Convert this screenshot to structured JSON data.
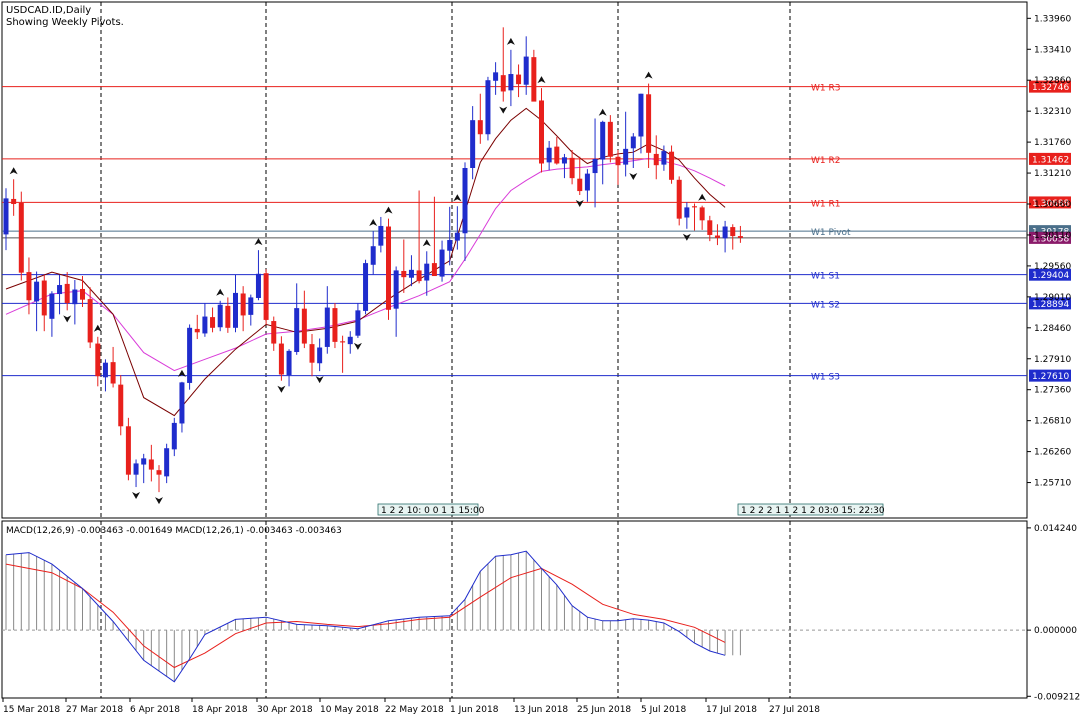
{
  "header": {
    "symbol_line": "USDCAD.ID,Daily",
    "pivot_note": "Showing Weekly Pivots."
  },
  "macd_header": "MACD(12,26,9) -0.003463 -0.001649 MACD(12,26,1) -0.003463 -0.003463",
  "colors": {
    "bull": "#1f2ccc",
    "bear": "#e8201c",
    "ma_fast": "#7a0000",
    "ma_slow": "#d93cd9",
    "resistance": "#e8201c",
    "support": "#1f2ccc",
    "pivot": "#4a6f8a",
    "macd_line": "#1f2ccc",
    "signal_line": "#e8201c"
  },
  "chart_data": [
    {
      "type": "candlestick",
      "title": "USDCAD.ID,Daily",
      "subtitle": "Showing Weekly Pivots.",
      "ylim": [
        1.2508,
        1.3425
      ],
      "y_ticks": [
        "1.33960",
        "1.33410",
        "1.32860",
        "1.32310",
        "1.31760",
        "1.31210",
        "1.30660",
        "1.30110",
        "1.29560",
        "1.29010",
        "1.28460",
        "1.27910",
        "1.27360",
        "1.26810",
        "1.26260",
        "1.25710"
      ],
      "x_ticks": [
        "15 Mar 2018",
        "27 Mar 2018",
        "6 Apr 2018",
        "18 Apr 2018",
        "30 Apr 2018",
        "10 May 2018",
        "22 May 2018",
        "1 Jun 2018",
        "13 Jun 2018",
        "25 Jun 2018",
        "5 Jul 2018",
        "17 Jul 2018",
        "27 Jul 2018"
      ],
      "pivot_levels": [
        {
          "name": "W1 R3",
          "value": 1.32746,
          "label": "1.32746",
          "kind": "resistance"
        },
        {
          "name": "W1 R2",
          "value": 1.31462,
          "label": "1.31462",
          "kind": "resistance"
        },
        {
          "name": "W1 R1",
          "value": 1.30688,
          "label": "1.30688",
          "kind": "resistance"
        },
        {
          "name": "W1 Pivot",
          "value": 1.30178,
          "label": "1.30178",
          "kind": "pivot"
        },
        {
          "name": "W1 S1",
          "value": 1.29404,
          "label": "1.29404",
          "kind": "support"
        },
        {
          "name": "W1 S2",
          "value": 1.28894,
          "label": "1.28894",
          "kind": "support"
        },
        {
          "name": "W1 S3",
          "value": 1.2761,
          "label": "1.27610",
          "kind": "support"
        }
      ],
      "current_price": {
        "value": 1.30058,
        "label": "1.30058"
      },
      "time_labels": [
        {
          "text": "1 2 2 10: 0 0 1 1 15:00"
        },
        {
          "text": "1 2 2 2 1 1 2 1 2 03:0 15: 22:30"
        }
      ],
      "candles": [
        [
          1.3012,
          1.3094,
          1.2984,
          1.3076
        ],
        [
          1.3075,
          1.311,
          1.3045,
          1.3066
        ],
        [
          1.3068,
          1.3088,
          1.293,
          1.2944
        ],
        [
          1.2945,
          1.2971,
          1.287,
          1.2895
        ],
        [
          1.2893,
          1.2946,
          1.284,
          1.2928
        ],
        [
          1.293,
          1.294,
          1.284,
          1.2868
        ],
        [
          1.2862,
          1.2911,
          1.283,
          1.2907
        ],
        [
          1.2906,
          1.294,
          1.287,
          1.2922
        ],
        [
          1.2924,
          1.2945,
          1.2877,
          1.289
        ],
        [
          1.2888,
          1.2931,
          1.2852,
          1.2914
        ],
        [
          1.2915,
          1.2938,
          1.2883,
          1.2896
        ],
        [
          1.2897,
          1.2918,
          1.281,
          1.282
        ],
        [
          1.2818,
          1.283,
          1.2742,
          1.276
        ],
        [
          1.2758,
          1.279,
          1.2733,
          1.2784
        ],
        [
          1.2785,
          1.2812,
          1.274,
          1.2747
        ],
        [
          1.2745,
          1.2762,
          1.2655,
          1.2671
        ],
        [
          1.2671,
          1.2686,
          1.2575,
          1.2585
        ],
        [
          1.2585,
          1.2612,
          1.2563,
          1.2605
        ],
        [
          1.2603,
          1.2622,
          1.257,
          1.2614
        ],
        [
          1.2612,
          1.2638,
          1.2573,
          1.2594
        ],
        [
          1.2593,
          1.2602,
          1.2554,
          1.2585
        ],
        [
          1.2582,
          1.264,
          1.257,
          1.2632
        ],
        [
          1.263,
          1.2686,
          1.2618,
          1.2677
        ],
        [
          1.2676,
          1.275,
          1.266,
          1.2749
        ],
        [
          1.2748,
          1.2852,
          1.2736,
          1.2846
        ],
        [
          1.2844,
          1.2869,
          1.2826,
          1.2838
        ],
        [
          1.2836,
          1.289,
          1.283,
          1.2866
        ],
        [
          1.2865,
          1.2882,
          1.2838,
          1.2846
        ],
        [
          1.2847,
          1.2894,
          1.284,
          1.2887
        ],
        [
          1.2885,
          1.29,
          1.2837,
          1.2846
        ],
        [
          1.2846,
          1.294,
          1.2838,
          1.2908
        ],
        [
          1.2907,
          1.292,
          1.284,
          1.2868
        ],
        [
          1.2869,
          1.2905,
          1.285,
          1.29
        ],
        [
          1.2899,
          1.2984,
          1.2895,
          1.2942
        ],
        [
          1.2943,
          1.295,
          1.2852,
          1.286
        ],
        [
          1.2858,
          1.2866,
          1.2805,
          1.2818
        ],
        [
          1.2818,
          1.2831,
          1.2752,
          1.2763
        ],
        [
          1.2762,
          1.2808,
          1.2742,
          1.2805
        ],
        [
          1.2803,
          1.2925,
          1.2798,
          1.2881
        ],
        [
          1.288,
          1.2912,
          1.281,
          1.2818
        ],
        [
          1.2817,
          1.2835,
          1.276,
          1.2784
        ],
        [
          1.2783,
          1.2827,
          1.2769,
          1.2811
        ],
        [
          1.2812,
          1.292,
          1.28,
          1.2882
        ],
        [
          1.2881,
          1.289,
          1.281,
          1.2821
        ],
        [
          1.2822,
          1.2832,
          1.2766,
          1.282
        ],
        [
          1.2817,
          1.284,
          1.28,
          1.283
        ],
        [
          1.2832,
          1.289,
          1.2828,
          1.2877
        ],
        [
          1.2876,
          1.2967,
          1.287,
          1.2961
        ],
        [
          1.2958,
          1.3018,
          1.2941,
          1.2991
        ],
        [
          1.2992,
          1.3043,
          1.298,
          1.3027
        ],
        [
          1.3026,
          1.304,
          1.286,
          1.2878
        ],
        [
          1.288,
          1.2955,
          1.283,
          1.2948
        ],
        [
          1.2947,
          1.3003,
          1.2908,
          1.2936
        ],
        [
          1.2935,
          1.2975,
          1.292,
          1.2949
        ],
        [
          1.2948,
          1.309,
          1.2925,
          1.2929
        ],
        [
          1.293,
          1.2982,
          1.2903,
          1.296
        ],
        [
          1.2961,
          1.3079,
          1.294,
          1.2938
        ],
        [
          1.2937,
          1.3001,
          1.2928,
          1.2985
        ],
        [
          1.2983,
          1.3061,
          1.2957,
          1.3002
        ],
        [
          1.3001,
          1.3062,
          1.2985,
          1.3015
        ],
        [
          1.3014,
          1.314,
          1.2965,
          1.313
        ],
        [
          1.313,
          1.324,
          1.311,
          1.3215
        ],
        [
          1.3215,
          1.3262,
          1.3173,
          1.319
        ],
        [
          1.319,
          1.3292,
          1.3179,
          1.3286
        ],
        [
          1.3285,
          1.3318,
          1.326,
          1.33
        ],
        [
          1.3295,
          1.338,
          1.3248,
          1.3266
        ],
        [
          1.3268,
          1.334,
          1.324,
          1.3297
        ],
        [
          1.3296,
          1.3314,
          1.3256,
          1.3279
        ],
        [
          1.3278,
          1.3364,
          1.326,
          1.3328
        ],
        [
          1.3327,
          1.334,
          1.3253,
          1.3248
        ],
        [
          1.325,
          1.3272,
          1.3122,
          1.3138
        ],
        [
          1.314,
          1.3178,
          1.3126,
          1.3166
        ],
        [
          1.3168,
          1.3185,
          1.3136,
          1.3138
        ],
        [
          1.3138,
          1.3155,
          1.3112,
          1.3149
        ],
        [
          1.3148,
          1.3162,
          1.3101,
          1.3112
        ],
        [
          1.3111,
          1.315,
          1.3082,
          1.3089
        ],
        [
          1.309,
          1.3128,
          1.307,
          1.312
        ],
        [
          1.3121,
          1.3218,
          1.306,
          1.3146
        ],
        [
          1.3145,
          1.3214,
          1.3101,
          1.3212
        ],
        [
          1.3212,
          1.3224,
          1.314,
          1.315
        ],
        [
          1.315,
          1.3162,
          1.31,
          1.3135
        ],
        [
          1.3136,
          1.323,
          1.3115,
          1.3164
        ],
        [
          1.3165,
          1.3192,
          1.313,
          1.3186
        ],
        [
          1.3186,
          1.3262,
          1.3156,
          1.3262
        ],
        [
          1.3261,
          1.328,
          1.313,
          1.3157
        ],
        [
          1.3155,
          1.3188,
          1.311,
          1.3135
        ],
        [
          1.3136,
          1.317,
          1.3125,
          1.316
        ],
        [
          1.3159,
          1.317,
          1.3102,
          1.3109
        ],
        [
          1.3109,
          1.3115,
          1.3028,
          1.304
        ],
        [
          1.3042,
          1.3069,
          1.3022,
          1.306
        ],
        [
          1.3062,
          1.3067,
          1.3019,
          1.306
        ],
        [
          1.306,
          1.3063,
          1.302,
          1.3037
        ],
        [
          1.3037,
          1.3045,
          1.3,
          1.3011
        ],
        [
          1.301,
          1.303,
          1.2993,
          1.3006
        ],
        [
          1.3005,
          1.3036,
          1.298,
          1.3026
        ],
        [
          1.3025,
          1.303,
          1.2985,
          1.3009
        ],
        [
          1.3009,
          1.3027,
          1.2997,
          1.3006
        ]
      ],
      "ma_fast": [
        [
          0,
          1.2915
        ],
        [
          6,
          1.2945
        ],
        [
          10,
          1.293
        ],
        [
          14,
          1.287
        ],
        [
          18,
          1.2722
        ],
        [
          22,
          1.269
        ],
        [
          26,
          1.2755
        ],
        [
          30,
          1.2808
        ],
        [
          34,
          1.2852
        ],
        [
          38,
          1.2838
        ],
        [
          42,
          1.2845
        ],
        [
          46,
          1.2858
        ],
        [
          50,
          1.2897
        ],
        [
          54,
          1.2932
        ],
        [
          58,
          1.2965
        ],
        [
          60,
          1.3052
        ],
        [
          62,
          1.314
        ],
        [
          64,
          1.3182
        ],
        [
          66,
          1.3215
        ],
        [
          68,
          1.3236
        ],
        [
          70,
          1.3215
        ],
        [
          72,
          1.3187
        ],
        [
          74,
          1.3158
        ],
        [
          76,
          1.3138
        ],
        [
          78,
          1.3149
        ],
        [
          80,
          1.3155
        ],
        [
          82,
          1.3158
        ],
        [
          84,
          1.3173
        ],
        [
          86,
          1.3161
        ],
        [
          88,
          1.3144
        ],
        [
          90,
          1.3112
        ],
        [
          92,
          1.3083
        ],
        [
          94,
          1.306
        ]
      ],
      "ma_slow": [
        [
          0,
          1.287
        ],
        [
          6,
          1.2906
        ],
        [
          10,
          1.2912
        ],
        [
          14,
          1.287
        ],
        [
          18,
          1.2802
        ],
        [
          22,
          1.277
        ],
        [
          26,
          1.279
        ],
        [
          30,
          1.281
        ],
        [
          34,
          1.2835
        ],
        [
          38,
          1.284
        ],
        [
          42,
          1.2848
        ],
        [
          46,
          1.286
        ],
        [
          50,
          1.2882
        ],
        [
          54,
          1.2903
        ],
        [
          58,
          1.2928
        ],
        [
          60,
          1.2968
        ],
        [
          62,
          1.3012
        ],
        [
          64,
          1.3058
        ],
        [
          66,
          1.309
        ],
        [
          68,
          1.3108
        ],
        [
          70,
          1.3124
        ],
        [
          72,
          1.3128
        ],
        [
          74,
          1.313
        ],
        [
          76,
          1.3132
        ],
        [
          78,
          1.3136
        ],
        [
          80,
          1.3139
        ],
        [
          82,
          1.3143
        ],
        [
          84,
          1.3147
        ],
        [
          86,
          1.3142
        ],
        [
          88,
          1.3135
        ],
        [
          90,
          1.3125
        ],
        [
          92,
          1.3112
        ],
        [
          94,
          1.3098
        ]
      ],
      "fractals": [
        {
          "i": 1,
          "dir": "up"
        },
        {
          "i": 8,
          "dir": "down"
        },
        {
          "i": 12,
          "dir": "up"
        },
        {
          "i": 17,
          "dir": "down"
        },
        {
          "i": 20,
          "dir": "down"
        },
        {
          "i": 23,
          "dir": "up"
        },
        {
          "i": 28,
          "dir": "up"
        },
        {
          "i": 33,
          "dir": "up"
        },
        {
          "i": 36,
          "dir": "down"
        },
        {
          "i": 41,
          "dir": "down"
        },
        {
          "i": 46,
          "dir": "down"
        },
        {
          "i": 48,
          "dir": "up"
        },
        {
          "i": 50,
          "dir": "up"
        },
        {
          "i": 55,
          "dir": "up"
        },
        {
          "i": 59,
          "dir": "up"
        },
        {
          "i": 65,
          "dir": "down"
        },
        {
          "i": 66,
          "dir": "up"
        },
        {
          "i": 70,
          "dir": "up"
        },
        {
          "i": 75,
          "dir": "down"
        },
        {
          "i": 78,
          "dir": "up"
        },
        {
          "i": 82,
          "dir": "down"
        },
        {
          "i": 84,
          "dir": "up"
        },
        {
          "i": 89,
          "dir": "down"
        },
        {
          "i": 91,
          "dir": "up"
        }
      ]
    },
    {
      "type": "macd",
      "title": "MACD(12,26,9) -0.003463 -0.001649 MACD(12,26,1) -0.003463 -0.003463",
      "ylim": [
        -0.00945,
        0.0152
      ],
      "y_ticks": [
        "0.014240",
        "0.000000",
        "-0.009212"
      ],
      "histogram": [
        [
          0,
          0.0105
        ],
        [
          3,
          0.0108
        ],
        [
          6,
          0.0092
        ],
        [
          10,
          0.0058
        ],
        [
          14,
          0.0012
        ],
        [
          18,
          -0.0042
        ],
        [
          22,
          -0.0072
        ],
        [
          24,
          -0.004
        ],
        [
          26,
          -0.0006
        ],
        [
          30,
          0.0015
        ],
        [
          34,
          0.0018
        ],
        [
          38,
          0.0008
        ],
        [
          42,
          0.0006
        ],
        [
          46,
          0.0002
        ],
        [
          50,
          0.0013
        ],
        [
          54,
          0.0018
        ],
        [
          58,
          0.002
        ],
        [
          60,
          0.0043
        ],
        [
          62,
          0.0082
        ],
        [
          64,
          0.0103
        ],
        [
          66,
          0.0105
        ],
        [
          68,
          0.011
        ],
        [
          70,
          0.0086
        ],
        [
          72,
          0.0063
        ],
        [
          74,
          0.0034
        ],
        [
          76,
          0.0018
        ],
        [
          78,
          0.0013
        ],
        [
          80,
          0.0013
        ],
        [
          82,
          0.0016
        ],
        [
          84,
          0.0014
        ],
        [
          86,
          0.001
        ],
        [
          88,
          -0.0002
        ],
        [
          90,
          -0.0018
        ],
        [
          92,
          -0.0029
        ],
        [
          94,
          -0.0035
        ]
      ],
      "signal": [
        [
          0,
          0.0092
        ],
        [
          6,
          0.008
        ],
        [
          10,
          0.0058
        ],
        [
          14,
          0.0025
        ],
        [
          18,
          -0.0022
        ],
        [
          22,
          -0.0052
        ],
        [
          26,
          -0.0032
        ],
        [
          30,
          -0.0005
        ],
        [
          34,
          0.001
        ],
        [
          38,
          0.0012
        ],
        [
          42,
          0.0008
        ],
        [
          46,
          0.0005
        ],
        [
          50,
          0.0009
        ],
        [
          54,
          0.0015
        ],
        [
          58,
          0.0018
        ],
        [
          62,
          0.0046
        ],
        [
          66,
          0.0073
        ],
        [
          70,
          0.0086
        ],
        [
          74,
          0.0064
        ],
        [
          78,
          0.0036
        ],
        [
          82,
          0.0022
        ],
        [
          86,
          0.0015
        ],
        [
          90,
          0.0004
        ],
        [
          94,
          -0.0017
        ]
      ]
    }
  ]
}
